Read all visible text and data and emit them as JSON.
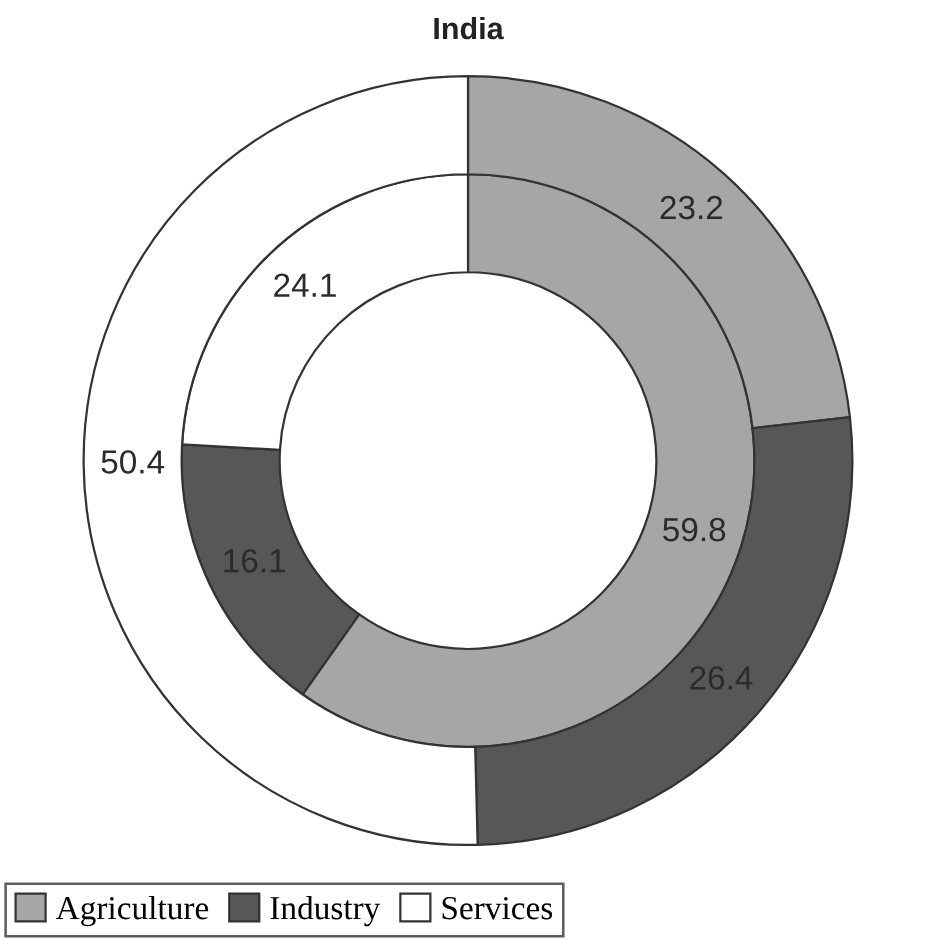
{
  "chart_data": {
    "type": "donut",
    "title": "India",
    "categories": [
      "Agriculture",
      "Industry",
      "Services"
    ],
    "colors": [
      "#a6a6a6",
      "#575757",
      "#ffffff"
    ],
    "series": [
      {
        "values": [
          59.8,
          16.1,
          24.1
        ]
      },
      {
        "values": [
          23.2,
          26.4,
          50.4
        ]
      }
    ],
    "data_labels": true,
    "legend": "bottom left"
  }
}
